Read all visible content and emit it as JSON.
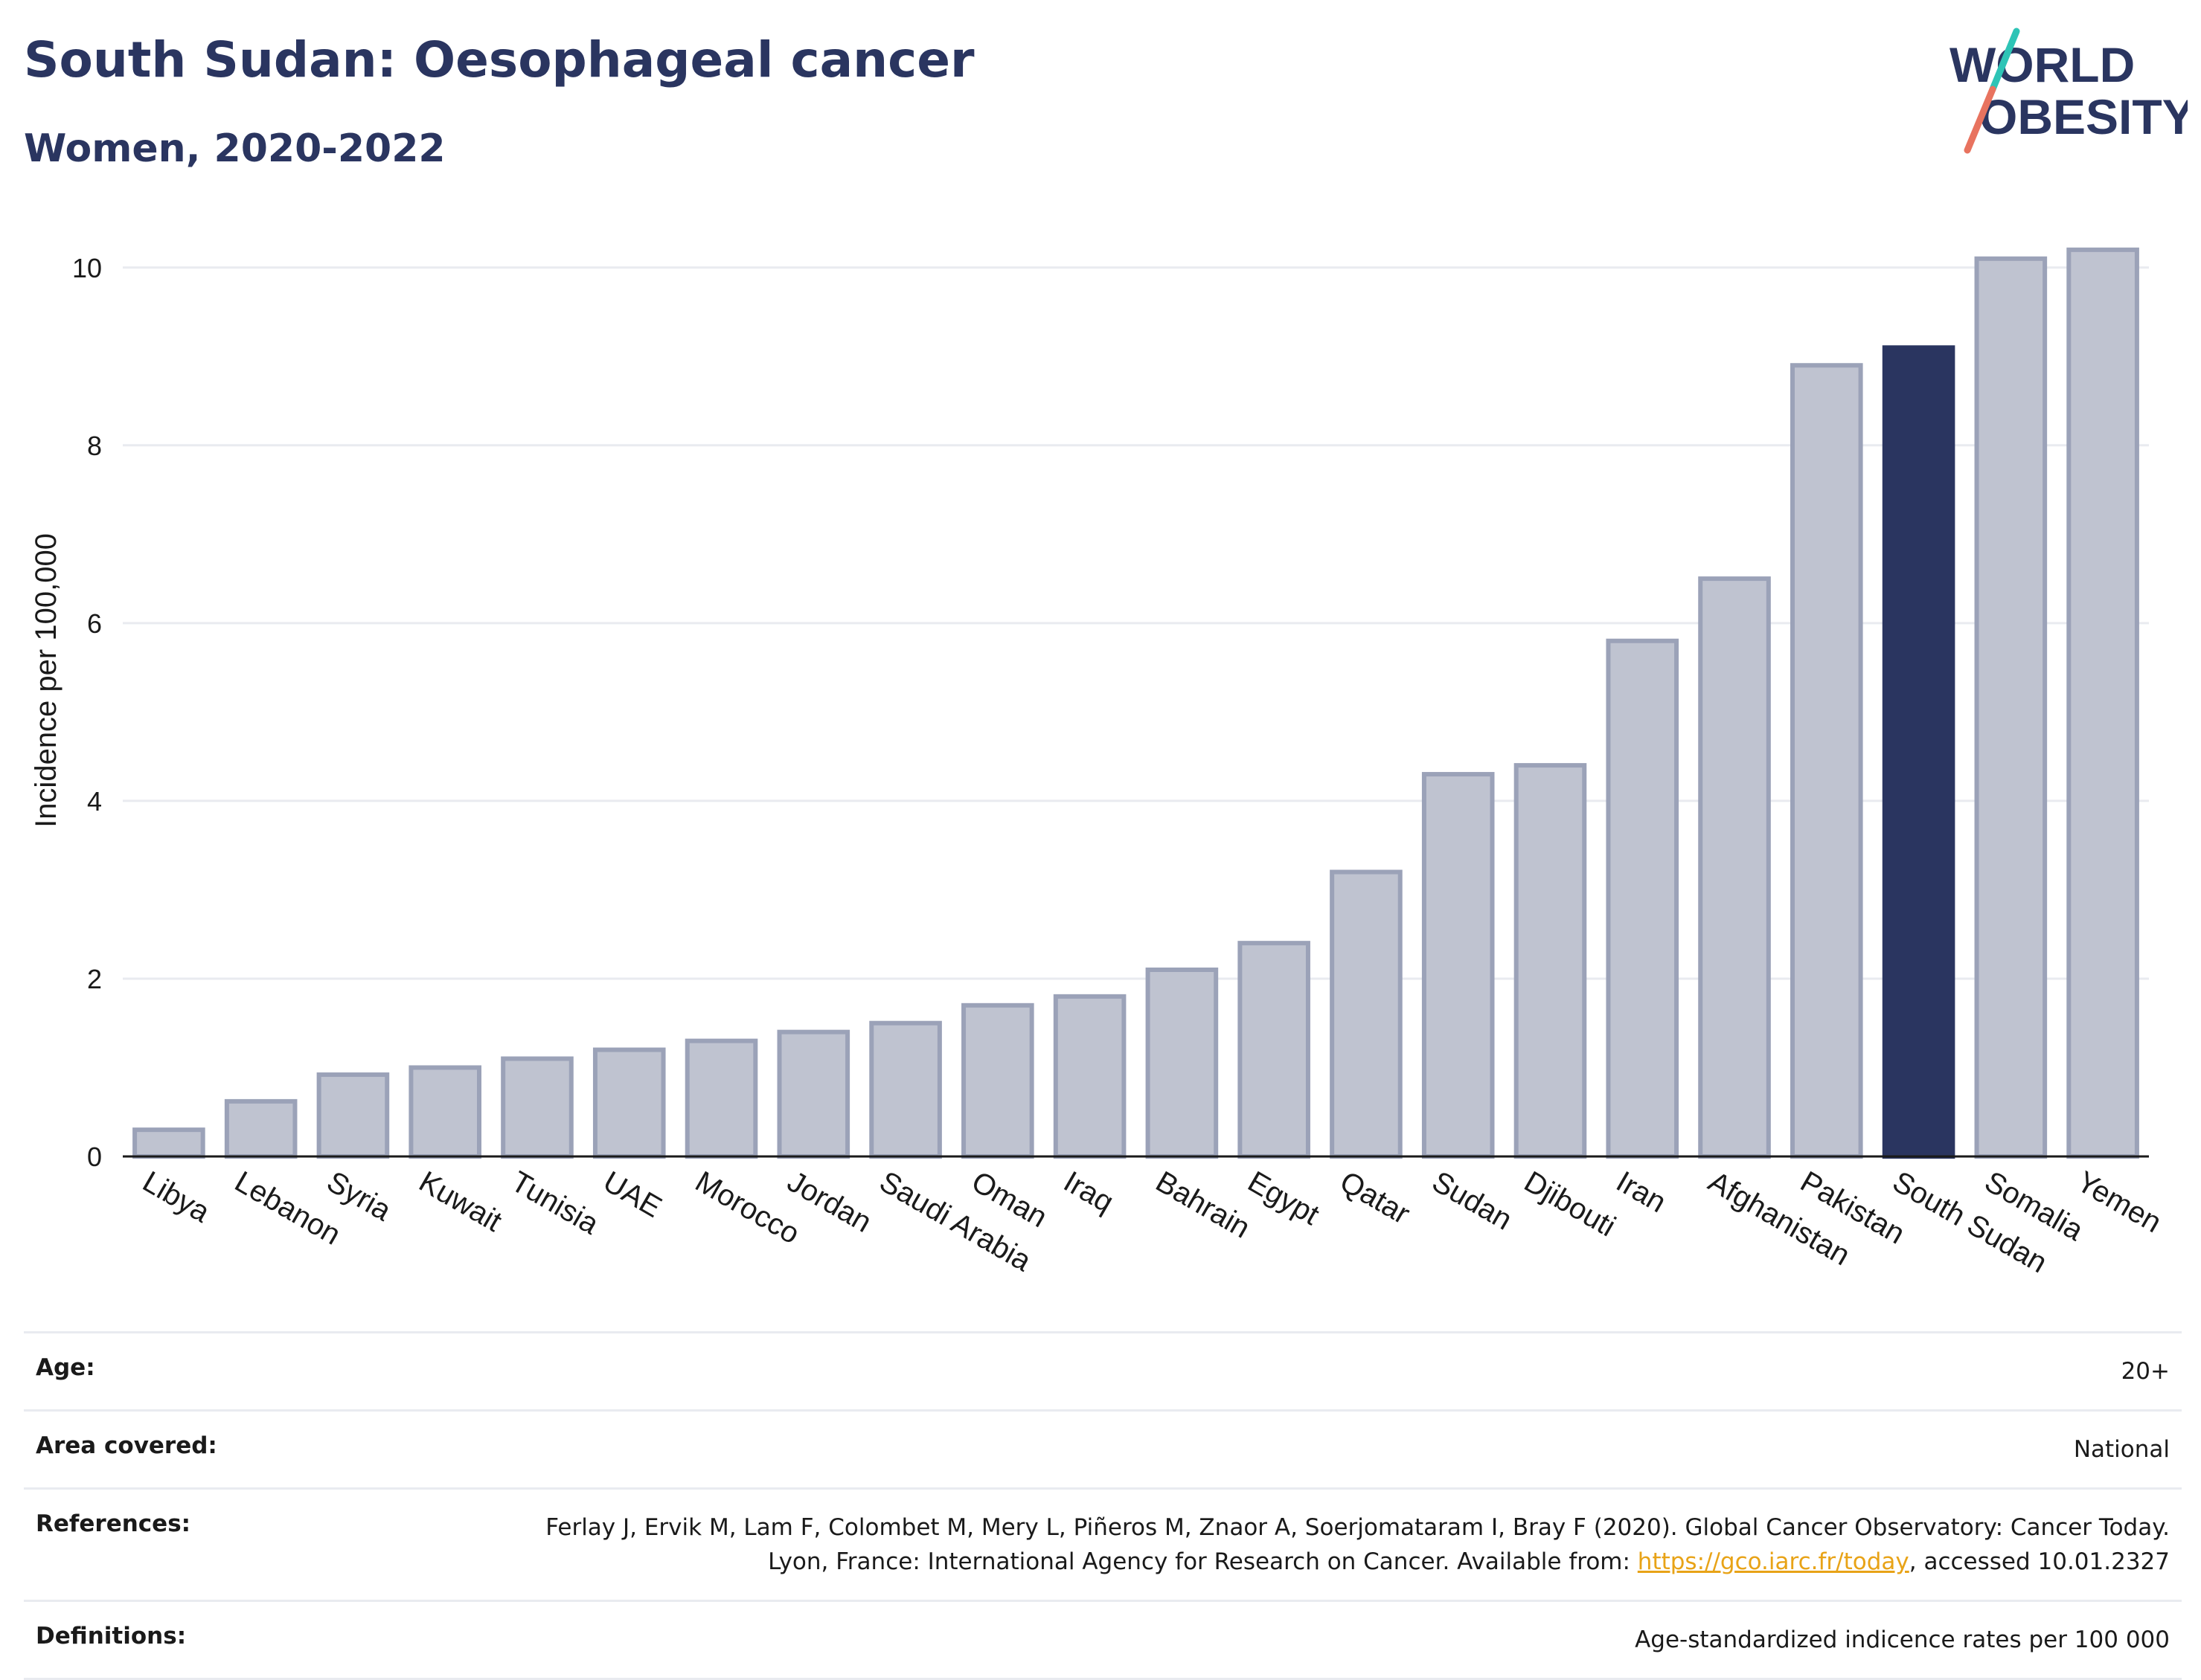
{
  "header": {
    "title": "South Sudan: Oesophageal cancer",
    "subtitle": "Women, 2020-2022",
    "logo_line1": "WORLD",
    "logo_line2": "OBESITY"
  },
  "colors": {
    "highlight": "#2a3560",
    "bar_fill": "#bfc3d0",
    "bar_stroke": "#9ba2b8",
    "logo_text": "#2a3560",
    "logo_slash_top": "#2ec4b6",
    "logo_slash_bottom": "#e8735f"
  },
  "chart_data": {
    "type": "bar",
    "categories": [
      "Libya",
      "Lebanon",
      "Syria",
      "Kuwait",
      "Tunisia",
      "UAE",
      "Morocco",
      "Jordan",
      "Saudi Arabia",
      "Oman",
      "Iraq",
      "Bahrain",
      "Egypt",
      "Qatar",
      "Sudan",
      "Djibouti",
      "Iran",
      "Afghanistan",
      "Pakistan",
      "South Sudan",
      "Somalia",
      "Yemen"
    ],
    "values": [
      0.3,
      0.62,
      0.92,
      1.0,
      1.1,
      1.2,
      1.3,
      1.4,
      1.5,
      1.7,
      1.8,
      2.1,
      2.4,
      3.2,
      4.3,
      4.4,
      5.8,
      6.5,
      8.9,
      9.1,
      10.1,
      10.2
    ],
    "highlight": "South Sudan",
    "ylabel": "Incidence per 100,000",
    "xlabel": "",
    "ylim": [
      0,
      10.5
    ],
    "yticks": [
      0,
      2,
      4,
      6,
      8,
      10
    ],
    "grid": true
  },
  "info": {
    "age_label": "Age:",
    "age_value": "20+",
    "area_label": "Area covered:",
    "area_value": "National",
    "references_label": "References:",
    "references_text": "Ferlay J, Ervik M, Lam F, Colombet M, Mery L, Piñeros M, Znaor A, Soerjomataram I, Bray F (2020). Global Cancer Observatory: Cancer Today. Lyon, France: International Agency for Research on Cancer. Available from: ",
    "references_link": "https://gco.iarc.fr/today",
    "references_suffix": ", accessed 10.01.2327",
    "definitions_label": "Definitions:",
    "definitions_value": "Age-standardized indicence rates per 100 000"
  }
}
